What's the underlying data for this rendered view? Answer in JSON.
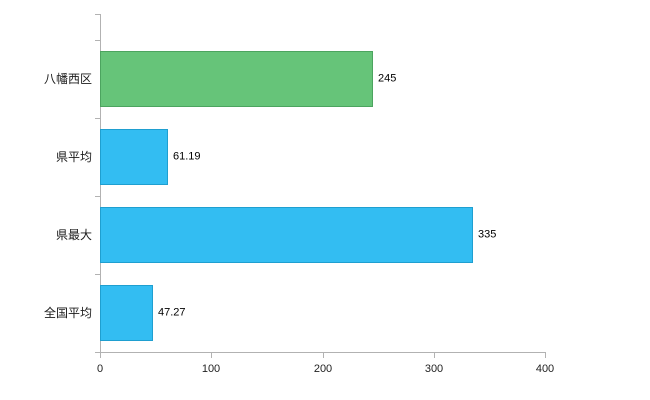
{
  "chart_data": {
    "type": "bar",
    "orientation": "horizontal",
    "title": "",
    "xlabel": "",
    "ylabel": "",
    "categories": [
      "八幡西区",
      "県平均",
      "県最大",
      "全国平均"
    ],
    "values": [
      245,
      61.19,
      335,
      47.27
    ],
    "value_labels": [
      "245",
      "61.19",
      "335",
      "47.27"
    ],
    "series": [
      {
        "name": "",
        "values": [
          245,
          61.19,
          335,
          47.27
        ]
      }
    ],
    "bar_colors": [
      "#66c479",
      "#33bdf2",
      "#33bdf2",
      "#33bdf2"
    ],
    "bar_border_colors": [
      "#4ca45f",
      "#1f9fd0",
      "#1f9fd0",
      "#1f9fd0"
    ],
    "xlim": [
      0,
      400
    ],
    "x_ticks": [
      0,
      100,
      200,
      300,
      400
    ],
    "x_tick_labels": [
      "0",
      "100",
      "200",
      "300",
      "400"
    ],
    "grid": false,
    "legend": "none",
    "axis_color": "#b2b2b2",
    "text_color": "#1a1a1a",
    "background_color": "#ffffff"
  },
  "layout_hints": {
    "value_label_position": "right-of-bar",
    "category_label_position": "left-of-axis"
  }
}
